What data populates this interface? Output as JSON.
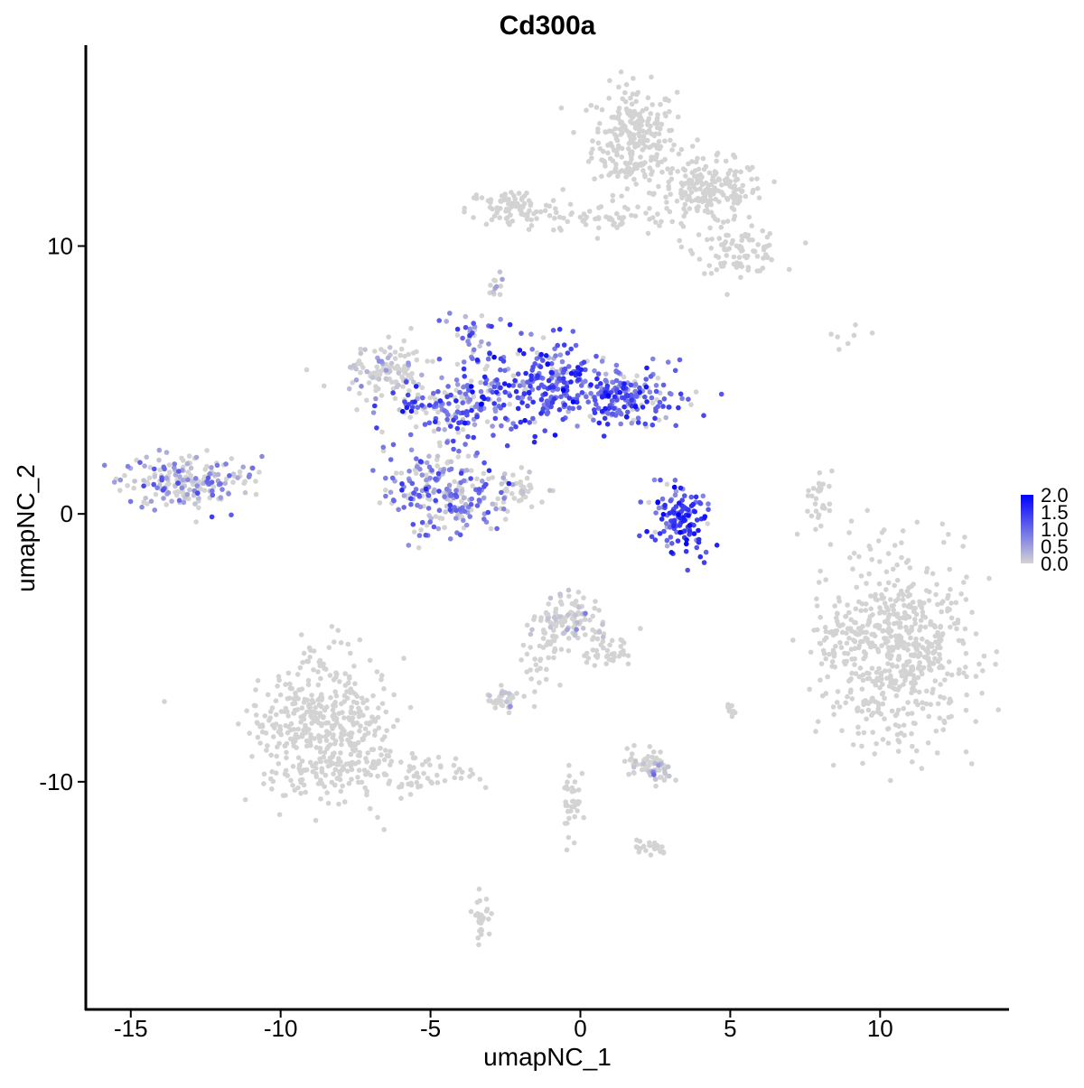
{
  "chart_data": {
    "type": "scatter",
    "title": "Cd300a",
    "xlabel": "umapNC_1",
    "ylabel": "umapNC_2",
    "xlim": [
      -16.5,
      14.3
    ],
    "ylim": [
      -18.5,
      17.5
    ],
    "x_ticks": [
      -15,
      -10,
      -5,
      0,
      5,
      10
    ],
    "x_tick_labels": [
      "-15",
      "-10",
      "-5",
      "0",
      "5",
      "10"
    ],
    "y_ticks": [
      -10,
      0,
      10
    ],
    "y_tick_labels": [
      "-10",
      "0",
      "10"
    ],
    "grid": false,
    "legend": {
      "placement": "right",
      "type": "colorbar",
      "ticks": [
        "0.0",
        "0.5",
        "1.0",
        "1.5",
        "2.0"
      ],
      "range": [
        0,
        2.0
      ],
      "color_low": "#d3d3d3",
      "color_high": "#0000ff"
    },
    "clusters": [
      {
        "cx": 1.8,
        "cy": 14.0,
        "sx": 0.7,
        "sy": 1.0,
        "n": 260,
        "expr": 0.0
      },
      {
        "cx": 4.3,
        "cy": 12.0,
        "sx": 0.9,
        "sy": 0.6,
        "n": 200,
        "expr": 0.0
      },
      {
        "cx": 5.3,
        "cy": 9.8,
        "sx": 0.7,
        "sy": 0.4,
        "n": 90,
        "expr": 0.0
      },
      {
        "cx": -2.2,
        "cy": 11.4,
        "sx": 0.8,
        "sy": 0.35,
        "n": 90,
        "expr": 0.0
      },
      {
        "cx": 0.8,
        "cy": 11.0,
        "sx": 1.2,
        "sy": 0.25,
        "n": 50,
        "expr": 0.0
      },
      {
        "cx": -2.8,
        "cy": 8.5,
        "sx": 0.12,
        "sy": 0.25,
        "n": 12,
        "expr": 0.6
      },
      {
        "cx": -13.1,
        "cy": 1.2,
        "sx": 1.0,
        "sy": 0.5,
        "n": 200,
        "expr": 0.6
      },
      {
        "cx": -6.5,
        "cy": 5.3,
        "sx": 0.7,
        "sy": 0.5,
        "n": 110,
        "expr": 0.1
      },
      {
        "cx": -4.3,
        "cy": 4.0,
        "sx": 1.0,
        "sy": 0.6,
        "n": 170,
        "expr": 1.0
      },
      {
        "cx": -1.0,
        "cy": 4.8,
        "sx": 1.2,
        "sy": 0.8,
        "n": 260,
        "expr": 1.1
      },
      {
        "cx": 1.5,
        "cy": 4.3,
        "sx": 0.9,
        "sy": 0.5,
        "n": 170,
        "expr": 1.1
      },
      {
        "cx": -4.5,
        "cy": 0.8,
        "sx": 1.0,
        "sy": 0.8,
        "n": 240,
        "expr": 0.7
      },
      {
        "cx": -3.8,
        "cy": 6.5,
        "sx": 0.3,
        "sy": 0.6,
        "n": 35,
        "expr": 0.9
      },
      {
        "cx": -2.0,
        "cy": 1.0,
        "sx": 0.6,
        "sy": 0.5,
        "n": 40,
        "expr": 0.1
      },
      {
        "cx": 3.4,
        "cy": -0.2,
        "sx": 0.5,
        "sy": 0.7,
        "n": 130,
        "expr": 1.3
      },
      {
        "cx": 8.0,
        "cy": 0.4,
        "sx": 0.2,
        "sy": 0.6,
        "n": 28,
        "expr": 0.0
      },
      {
        "cx": 10.5,
        "cy": -5.0,
        "sx": 1.2,
        "sy": 1.7,
        "n": 600,
        "expr": 0.0
      },
      {
        "cx": 8.4,
        "cy": -4.8,
        "sx": 0.25,
        "sy": 0.6,
        "n": 30,
        "expr": 0.0
      },
      {
        "cx": -8.6,
        "cy": -8.0,
        "sx": 1.1,
        "sy": 1.3,
        "n": 460,
        "expr": 0.0
      },
      {
        "cx": -5.8,
        "cy": -9.6,
        "sx": 1.2,
        "sy": 0.35,
        "n": 80,
        "expr": 0.0
      },
      {
        "cx": -0.5,
        "cy": -4.0,
        "sx": 0.6,
        "sy": 0.5,
        "n": 110,
        "expr": 0.02
      },
      {
        "cx": 1.0,
        "cy": -5.1,
        "sx": 0.4,
        "sy": 0.4,
        "n": 40,
        "expr": 0.0
      },
      {
        "cx": -1.4,
        "cy": -5.6,
        "sx": 0.3,
        "sy": 0.6,
        "n": 30,
        "expr": 0.0
      },
      {
        "cx": -2.5,
        "cy": -6.9,
        "sx": 0.3,
        "sy": 0.2,
        "n": 35,
        "expr": 0.1
      },
      {
        "cx": 2.4,
        "cy": -9.4,
        "sx": 0.4,
        "sy": 0.3,
        "n": 70,
        "expr": 0.05
      },
      {
        "cx": -0.3,
        "cy": -10.6,
        "sx": 0.15,
        "sy": 0.9,
        "n": 35,
        "expr": 0.0
      },
      {
        "cx": -3.3,
        "cy": -15.0,
        "sx": 0.15,
        "sy": 0.4,
        "n": 30,
        "expr": 0.0
      },
      {
        "cx": 2.3,
        "cy": -12.5,
        "sx": 0.3,
        "sy": 0.15,
        "n": 20,
        "expr": 0.0
      },
      {
        "cx": 5.0,
        "cy": -7.3,
        "sx": 0.12,
        "sy": 0.2,
        "n": 10,
        "expr": 0.0
      },
      {
        "cx": 8.7,
        "cy": 6.6,
        "sx": 0.8,
        "sy": 0.3,
        "n": 8,
        "expr": 0.0
      }
    ]
  }
}
